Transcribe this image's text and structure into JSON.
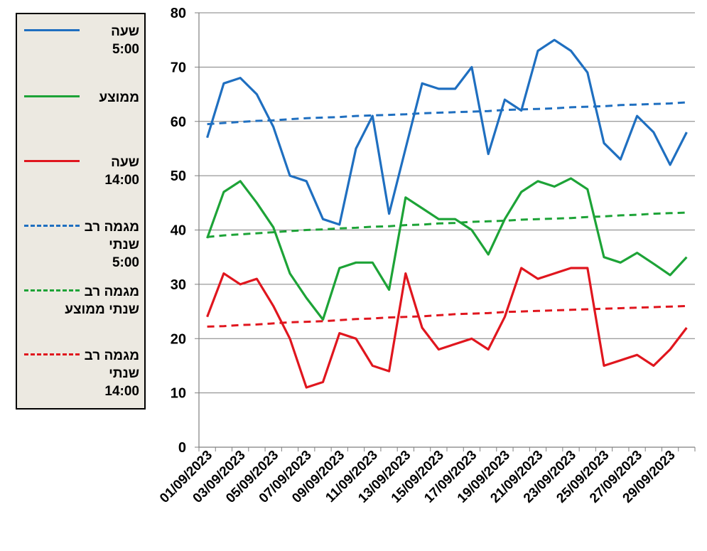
{
  "chart_data": {
    "type": "line",
    "ylim": [
      0,
      80
    ],
    "yticks": [
      "0",
      "10",
      "20",
      "30",
      "40",
      "50",
      "60",
      "70",
      "80"
    ],
    "x_labels": [
      "01/09/2023",
      "03/09/2023",
      "05/09/2023",
      "07/09/2023",
      "09/09/2023",
      "11/09/2023",
      "13/09/2023",
      "15/09/2023",
      "17/09/2023",
      "19/09/2023",
      "21/09/2023",
      "23/09/2023",
      "25/09/2023",
      "27/09/2023",
      "29/09/2023"
    ],
    "grid": true,
    "legend_position": "left",
    "series": [
      {
        "name": "שעה 5:00",
        "color": "#1f6fc0",
        "dash": false,
        "values": [
          57,
          67,
          68,
          65,
          59,
          50,
          49,
          42,
          41,
          55,
          61,
          43,
          55,
          67,
          66,
          66,
          70,
          54,
          64,
          62,
          73,
          75,
          73,
          69,
          56,
          53,
          61,
          58,
          52,
          58
        ]
      },
      {
        "name": "ממוצע",
        "color": "#1da337",
        "dash": false,
        "values": [
          38.5,
          47,
          49,
          45,
          40.5,
          32,
          27.5,
          23.5,
          33,
          34,
          34,
          29,
          46,
          44,
          42,
          42,
          40,
          35.5,
          42,
          47,
          49,
          48,
          49.5,
          47.5,
          35,
          34,
          35.8,
          33.8,
          31.7,
          35
        ]
      },
      {
        "name": "שעה 14:00",
        "color": "#e0161e",
        "dash": false,
        "values": [
          24,
          32,
          30,
          31,
          26,
          20,
          11,
          12,
          21,
          20,
          15,
          14,
          32,
          22,
          18,
          19,
          20,
          18,
          24,
          33,
          31,
          32,
          33,
          33,
          15,
          16,
          17,
          15,
          18,
          22
        ]
      },
      {
        "name": "מגמה רב שנתי 5:00",
        "color": "#1f6fc0",
        "dash": true,
        "values": [
          59.5,
          59.7,
          59.9,
          60.1,
          60.2,
          60.4,
          60.6,
          60.7,
          60.8,
          61.0,
          61.1,
          61.2,
          61.3,
          61.5,
          61.6,
          61.7,
          61.8,
          61.9,
          62.1,
          62.2,
          62.3,
          62.4,
          62.6,
          62.7,
          62.8,
          63.0,
          63.1,
          63.2,
          63.3,
          63.5
        ]
      },
      {
        "name": "מגמה רב שנתי ממוצע",
        "color": "#1da337",
        "dash": true,
        "values": [
          38.7,
          39.0,
          39.2,
          39.4,
          39.6,
          39.8,
          40.0,
          40.1,
          40.3,
          40.4,
          40.6,
          40.7,
          40.9,
          41.0,
          41.2,
          41.3,
          41.5,
          41.6,
          41.7,
          41.9,
          42.0,
          42.1,
          42.2,
          42.4,
          42.5,
          42.7,
          42.8,
          43.0,
          43.1,
          43.2
        ]
      },
      {
        "name": "מגמה רב שנתי 14:00",
        "color": "#e0161e",
        "dash": true,
        "values": [
          22.2,
          22.3,
          22.5,
          22.6,
          22.8,
          23.0,
          23.1,
          23.2,
          23.4,
          23.6,
          23.7,
          23.9,
          24.0,
          24.1,
          24.3,
          24.5,
          24.6,
          24.7,
          24.9,
          25.0,
          25.1,
          25.2,
          25.3,
          25.4,
          25.5,
          25.6,
          25.7,
          25.8,
          25.9,
          26.0
        ]
      }
    ]
  },
  "legend": [
    {
      "label": "שעה",
      "sub": "5:00",
      "color": "#1f6fc0",
      "dash": false
    },
    {
      "label": "ממוצע",
      "sub": "",
      "color": "#1da337",
      "dash": false
    },
    {
      "label": "שעה",
      "sub": "14:00",
      "color": "#e0161e",
      "dash": false
    },
    {
      "label": "מגמה רב שנתי",
      "sub": "5:00",
      "color": "#1f6fc0",
      "dash": true
    },
    {
      "label": "מגמה רב שנתי ממוצע",
      "sub": "",
      "color": "#1da337",
      "dash": true
    },
    {
      "label": "מגמה רב שנתי",
      "sub": "14:00",
      "color": "#e0161e",
      "dash": true
    }
  ]
}
